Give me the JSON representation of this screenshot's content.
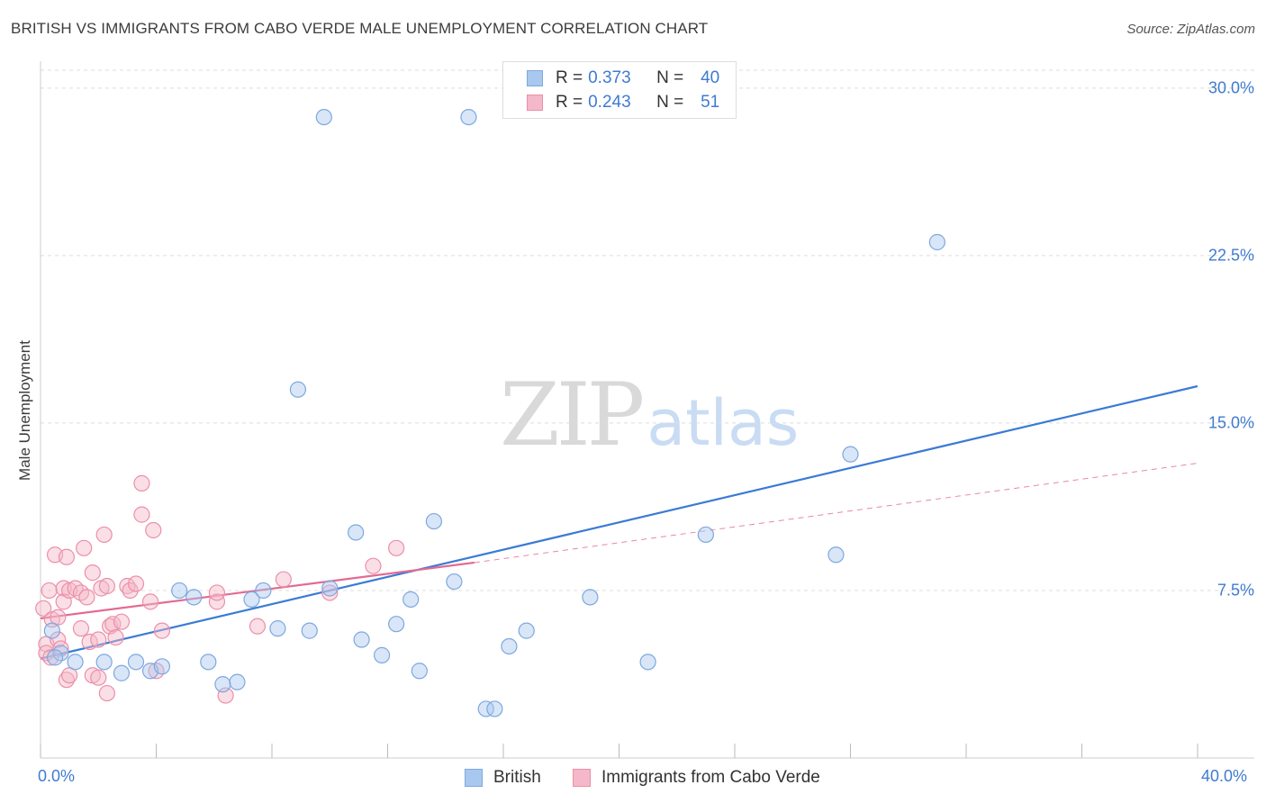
{
  "header": {
    "title": "BRITISH VS IMMIGRANTS FROM CABO VERDE MALE UNEMPLOYMENT CORRELATION CHART",
    "source": "Source: ZipAtlas.com"
  },
  "watermark": {
    "zip": "ZIP",
    "atlas": "atlas"
  },
  "legend": {
    "rows": [
      {
        "r_label": "R =",
        "r_value": "0.373",
        "n_label": "N =",
        "n_value": "40",
        "color": "#a9c8f0"
      },
      {
        "r_label": "R =",
        "r_value": "0.243",
        "n_label": "N =",
        "n_value": "51",
        "color": "#f5b8c8"
      }
    ]
  },
  "bottom_legend": {
    "british": "British",
    "cabo_verde": "Immigrants from Cabo Verde"
  },
  "colors": {
    "british_fill": "#a9c8f0",
    "british_stroke": "#7ea8de",
    "british_line": "#3a7bd5",
    "cabo_fill": "#f5b8c8",
    "cabo_stroke": "#ec8fa9",
    "cabo_line": "#e26a93",
    "tick_text": "#3f7bd0",
    "grid": "#dddddd"
  },
  "chart_data": {
    "type": "scatter",
    "title": "BRITISH VS IMMIGRANTS FROM CABO VERDE MALE UNEMPLOYMENT CORRELATION CHART",
    "xlabel": "",
    "ylabel": "Male Unemployment",
    "xlim": [
      0,
      40
    ],
    "ylim": [
      0,
      30.8
    ],
    "x_tick_labels": [
      "0.0%",
      "40.0%"
    ],
    "y_ticks": [
      {
        "value": 7.5,
        "label": "7.5%"
      },
      {
        "value": 15.0,
        "label": "15.0%"
      },
      {
        "value": 22.5,
        "label": "22.5%"
      },
      {
        "value": 30.0,
        "label": "30.0%"
      }
    ],
    "grid": "horizontal dashed",
    "legend_position": "top-center",
    "series": [
      {
        "name": "British",
        "r": 0.373,
        "n": 40,
        "points": [
          [
            0.4,
            5.7
          ],
          [
            0.7,
            4.7
          ],
          [
            1.2,
            4.3
          ],
          [
            2.2,
            4.3
          ],
          [
            2.8,
            3.8
          ],
          [
            3.3,
            4.3
          ],
          [
            3.8,
            3.9
          ],
          [
            4.2,
            4.1
          ],
          [
            4.8,
            7.5
          ],
          [
            5.3,
            7.2
          ],
          [
            5.8,
            4.3
          ],
          [
            6.3,
            3.3
          ],
          [
            6.8,
            3.4
          ],
          [
            7.3,
            7.1
          ],
          [
            7.7,
            7.5
          ],
          [
            8.2,
            5.8
          ],
          [
            8.9,
            16.5
          ],
          [
            9.3,
            5.7
          ],
          [
            9.8,
            28.7
          ],
          [
            10.0,
            7.6
          ],
          [
            10.9,
            10.1
          ],
          [
            11.1,
            5.3
          ],
          [
            11.8,
            4.6
          ],
          [
            12.3,
            6.0
          ],
          [
            12.8,
            7.1
          ],
          [
            13.1,
            3.9
          ],
          [
            13.6,
            10.6
          ],
          [
            14.3,
            7.9
          ],
          [
            14.8,
            28.7
          ],
          [
            15.4,
            2.2
          ],
          [
            15.7,
            2.2
          ],
          [
            16.2,
            5.0
          ],
          [
            16.8,
            5.7
          ],
          [
            19.0,
            7.2
          ],
          [
            21.0,
            4.3
          ],
          [
            23.0,
            10.0
          ],
          [
            27.5,
            9.1
          ],
          [
            28.0,
            13.6
          ],
          [
            31.0,
            23.1
          ],
          [
            0.5,
            4.5
          ]
        ],
        "trend": {
          "x": [
            0,
            40
          ],
          "y": [
            4.45,
            16.65
          ]
        }
      },
      {
        "name": "Immigrants from Cabo Verde",
        "r": 0.243,
        "n": 51,
        "points": [
          [
            0.1,
            6.7
          ],
          [
            0.2,
            5.1
          ],
          [
            0.2,
            4.7
          ],
          [
            0.3,
            7.5
          ],
          [
            0.35,
            4.5
          ],
          [
            0.4,
            6.2
          ],
          [
            0.5,
            9.1
          ],
          [
            0.6,
            5.3
          ],
          [
            0.6,
            6.3
          ],
          [
            0.7,
            4.9
          ],
          [
            0.8,
            7.6
          ],
          [
            0.8,
            7.0
          ],
          [
            0.9,
            3.5
          ],
          [
            0.9,
            9.0
          ],
          [
            1.0,
            3.7
          ],
          [
            1.0,
            7.5
          ],
          [
            1.2,
            7.6
          ],
          [
            1.4,
            5.8
          ],
          [
            1.4,
            7.4
          ],
          [
            1.5,
            9.4
          ],
          [
            1.6,
            7.2
          ],
          [
            1.7,
            5.2
          ],
          [
            1.8,
            8.3
          ],
          [
            1.8,
            3.7
          ],
          [
            2.0,
            5.3
          ],
          [
            2.0,
            3.6
          ],
          [
            2.1,
            7.6
          ],
          [
            2.2,
            10.0
          ],
          [
            2.3,
            7.7
          ],
          [
            2.3,
            2.9
          ],
          [
            2.4,
            5.9
          ],
          [
            2.5,
            6.0
          ],
          [
            2.6,
            5.4
          ],
          [
            2.8,
            6.1
          ],
          [
            3.0,
            7.7
          ],
          [
            3.1,
            7.5
          ],
          [
            3.3,
            7.8
          ],
          [
            3.5,
            12.3
          ],
          [
            3.5,
            10.9
          ],
          [
            3.8,
            7.0
          ],
          [
            3.9,
            10.2
          ],
          [
            4.0,
            3.9
          ],
          [
            4.2,
            5.7
          ],
          [
            6.1,
            7.0
          ],
          [
            6.1,
            7.4
          ],
          [
            6.4,
            2.8
          ],
          [
            7.5,
            5.9
          ],
          [
            8.4,
            8.0
          ],
          [
            10.0,
            7.4
          ],
          [
            11.5,
            8.6
          ],
          [
            12.3,
            9.4
          ]
        ],
        "trend": {
          "x": [
            0,
            15
          ],
          "y": [
            6.25,
            8.75
          ]
        },
        "trend_extension": {
          "x": [
            15,
            40
          ],
          "y": [
            8.75,
            13.2
          ]
        }
      }
    ]
  }
}
